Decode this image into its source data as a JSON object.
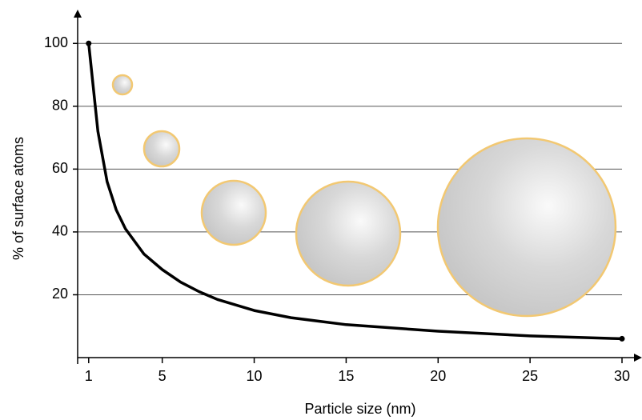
{
  "chart_data": {
    "type": "line",
    "x_label": "Particle size (nm)",
    "y_label": "% of surface atoms",
    "series": [
      {
        "name": "surface atoms",
        "color": "#000000",
        "x": [
          1,
          1.5,
          2,
          2.5,
          3,
          4,
          5,
          6,
          7,
          8,
          10,
          12,
          15,
          20,
          25,
          30
        ],
        "values": [
          100,
          72,
          56,
          47,
          41,
          33,
          28,
          24,
          21,
          18.5,
          15,
          12.7,
          10.5,
          8.4,
          6.9,
          6
        ]
      }
    ],
    "xlim": [
      0.4,
      31
    ],
    "ylim": [
      0,
      110
    ],
    "xticks": [
      1,
      5,
      10,
      15,
      20,
      25,
      30
    ],
    "yticks": [
      20,
      40,
      60,
      80,
      100
    ],
    "grid": true
  }
}
